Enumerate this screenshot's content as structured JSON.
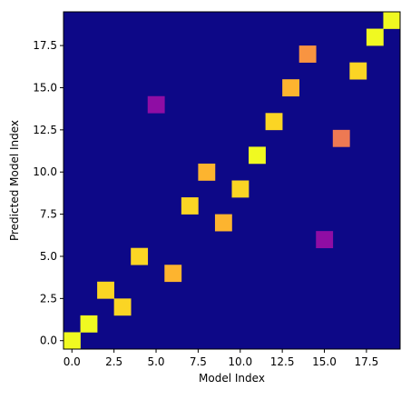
{
  "chart_data": {
    "type": "heatmap",
    "title": "",
    "xlabel": "Model Index",
    "ylabel": "Predicted Model Index",
    "n": 20,
    "xlim": [
      -0.5,
      19.5
    ],
    "ylim": [
      -0.5,
      19.5
    ],
    "x_ticks": [
      0.0,
      2.5,
      5.0,
      7.5,
      10.0,
      12.5,
      15.0,
      17.5
    ],
    "x_tick_labels": [
      "0.0",
      "2.5",
      "5.0",
      "7.5",
      "10.0",
      "12.5",
      "15.0",
      "17.5"
    ],
    "y_ticks": [
      0.0,
      2.5,
      5.0,
      7.5,
      10.0,
      12.5,
      15.0,
      17.5
    ],
    "y_tick_labels": [
      "0.0",
      "2.5",
      "5.0",
      "7.5",
      "10.0",
      "12.5",
      "15.0",
      "17.5"
    ],
    "colormap": "plasma",
    "background_value": 0,
    "background_color": "#0d0887",
    "cells": [
      {
        "x": 0,
        "y": 0,
        "color": "#f0f921"
      },
      {
        "x": 1,
        "y": 1,
        "color": "#f0f921"
      },
      {
        "x": 2,
        "y": 3,
        "color": "#fbd524"
      },
      {
        "x": 3,
        "y": 2,
        "color": "#fbd524"
      },
      {
        "x": 4,
        "y": 5,
        "color": "#fbd524"
      },
      {
        "x": 5,
        "y": 14,
        "color": "#8f0da4"
      },
      {
        "x": 6,
        "y": 4,
        "color": "#fdb42f"
      },
      {
        "x": 7,
        "y": 8,
        "color": "#fbd524"
      },
      {
        "x": 8,
        "y": 10,
        "color": "#fdb42f"
      },
      {
        "x": 9,
        "y": 7,
        "color": "#fdb42f"
      },
      {
        "x": 10,
        "y": 9,
        "color": "#fbd524"
      },
      {
        "x": 11,
        "y": 11,
        "color": "#f0f921"
      },
      {
        "x": 12,
        "y": 13,
        "color": "#fbd524"
      },
      {
        "x": 13,
        "y": 15,
        "color": "#fdb42f"
      },
      {
        "x": 14,
        "y": 17,
        "color": "#f89441"
      },
      {
        "x": 15,
        "y": 6,
        "color": "#8f0da4"
      },
      {
        "x": 16,
        "y": 12,
        "color": "#ed7953"
      },
      {
        "x": 17,
        "y": 16,
        "color": "#fbd524"
      },
      {
        "x": 18,
        "y": 18,
        "color": "#f0f921"
      },
      {
        "x": 19,
        "y": 19,
        "color": "#f0f921"
      }
    ]
  }
}
